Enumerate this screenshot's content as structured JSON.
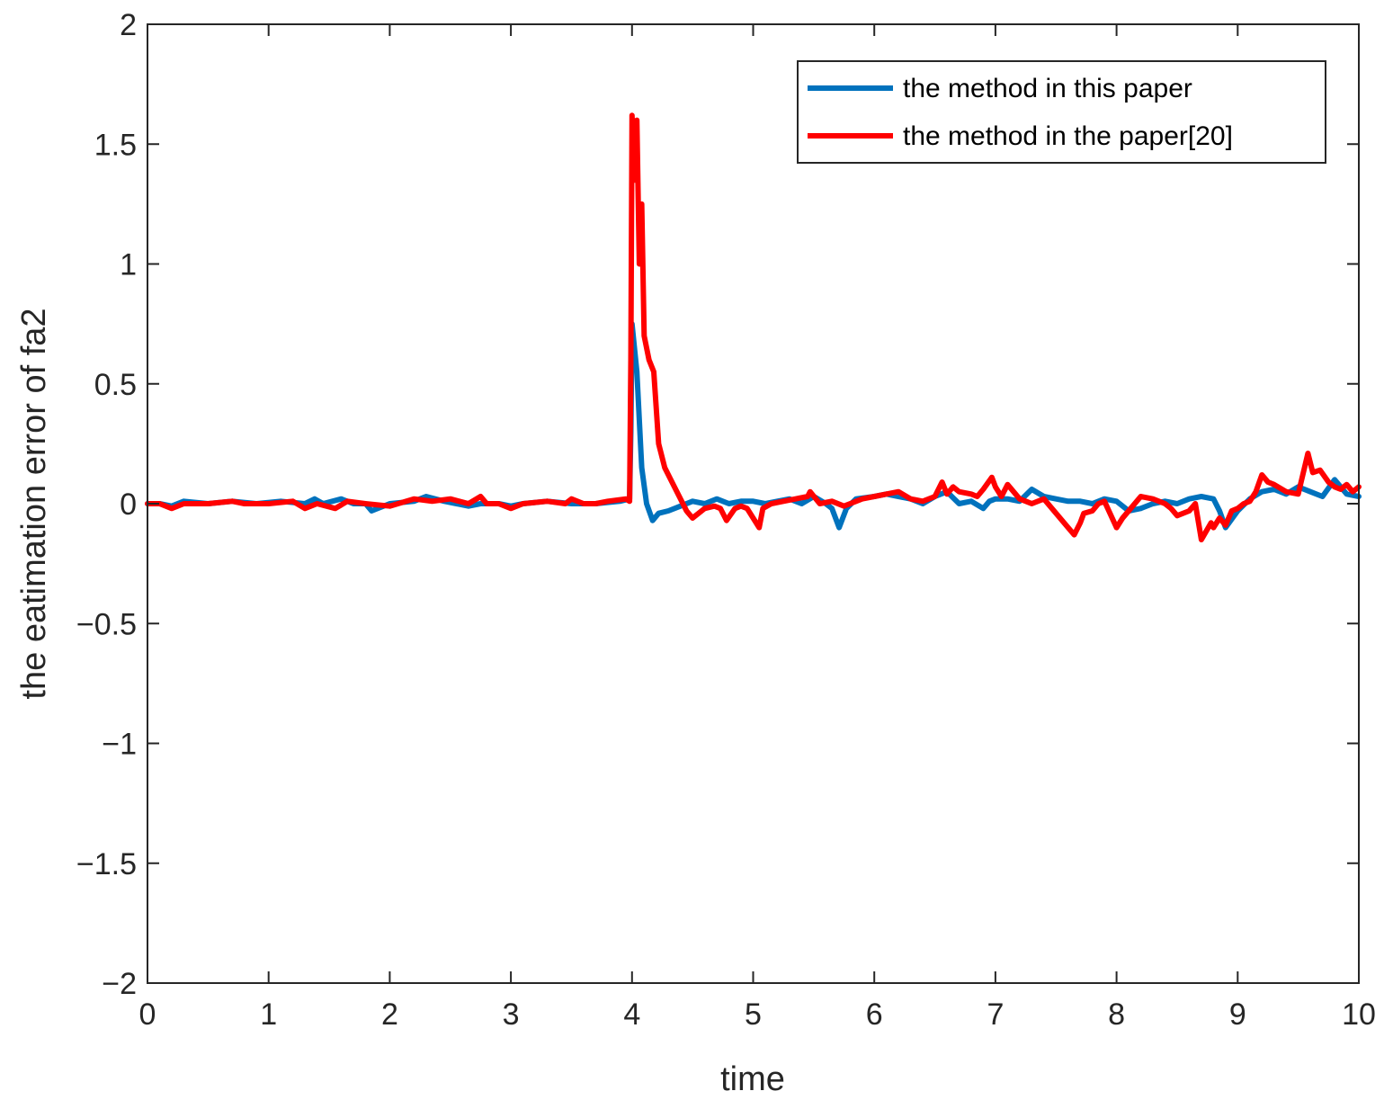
{
  "chart_data": {
    "type": "line",
    "title": "",
    "xlabel": "time",
    "ylabel": "the eatimation error of fa2",
    "xlim": [
      0,
      10
    ],
    "ylim": [
      -2,
      2
    ],
    "xticks": [
      0,
      1,
      2,
      3,
      4,
      5,
      6,
      7,
      8,
      9,
      10
    ],
    "xtick_labels": [
      "0",
      "1",
      "2",
      "3",
      "4",
      "5",
      "6",
      "7",
      "8",
      "9",
      "10"
    ],
    "yticks": [
      2,
      1.5,
      1,
      0.5,
      0,
      -0.5,
      -1,
      -1.5,
      -2
    ],
    "ytick_labels": [
      "2",
      "1.5",
      "1",
      "0.5",
      "0",
      "−0.5",
      "−1",
      "−1.5",
      "−2"
    ],
    "grid": false,
    "legend_position": "top-right",
    "series": [
      {
        "name": "the method in this paper",
        "color": "#0072bd",
        "x": [
          0,
          0.1,
          0.2,
          0.3,
          0.5,
          0.7,
          0.9,
          1.1,
          1.3,
          1.38,
          1.45,
          1.6,
          1.7,
          1.8,
          1.85,
          2.0,
          2.2,
          2.3,
          2.45,
          2.65,
          2.75,
          2.9,
          3.0,
          3.1,
          3.3,
          3.5,
          3.7,
          3.9,
          3.98,
          3.99,
          4.0,
          4.04,
          4.08,
          4.12,
          4.17,
          4.22,
          4.3,
          4.4,
          4.5,
          4.6,
          4.7,
          4.8,
          4.9,
          5.0,
          5.1,
          5.2,
          5.3,
          5.4,
          5.5,
          5.6,
          5.65,
          5.71,
          5.77,
          5.85,
          6.0,
          6.1,
          6.2,
          6.3,
          6.4,
          6.5,
          6.6,
          6.7,
          6.8,
          6.9,
          6.95,
          7.0,
          7.1,
          7.2,
          7.3,
          7.4,
          7.5,
          7.6,
          7.7,
          7.8,
          7.9,
          8.0,
          8.1,
          8.2,
          8.3,
          8.4,
          8.5,
          8.6,
          8.7,
          8.8,
          8.85,
          8.9,
          9.0,
          9.1,
          9.2,
          9.3,
          9.4,
          9.5,
          9.6,
          9.7,
          9.8,
          9.9,
          10.0
        ],
        "y": [
          0.0,
          0.0,
          -0.01,
          0.01,
          0.0,
          0.01,
          0.0,
          0.01,
          0.0,
          0.02,
          0.0,
          0.02,
          0.0,
          0.0,
          -0.03,
          0.0,
          0.01,
          0.03,
          0.01,
          -0.01,
          0.0,
          0.0,
          -0.01,
          0.0,
          0.01,
          0.0,
          0.0,
          0.01,
          0.02,
          0.3,
          0.75,
          0.55,
          0.15,
          0.0,
          -0.07,
          -0.04,
          -0.03,
          -0.01,
          0.01,
          0.0,
          0.02,
          0.0,
          0.01,
          0.01,
          0.0,
          0.01,
          0.02,
          0.0,
          0.03,
          0.0,
          -0.02,
          -0.1,
          -0.02,
          0.02,
          0.03,
          0.04,
          0.03,
          0.02,
          0.0,
          0.03,
          0.05,
          0.0,
          0.01,
          -0.02,
          0.01,
          0.02,
          0.02,
          0.01,
          0.06,
          0.03,
          0.02,
          0.01,
          0.01,
          0.0,
          0.02,
          0.01,
          -0.03,
          -0.02,
          0.0,
          0.01,
          0.0,
          0.02,
          0.03,
          0.02,
          -0.03,
          -0.1,
          -0.03,
          0.02,
          0.05,
          0.06,
          0.04,
          0.07,
          0.05,
          0.03,
          0.1,
          0.04,
          0.03
        ]
      },
      {
        "name": "the method in the paper[20]",
        "color": "#ff0000",
        "x": [
          0,
          0.1,
          0.2,
          0.3,
          0.5,
          0.7,
          0.8,
          1.0,
          1.2,
          1.3,
          1.4,
          1.55,
          1.65,
          1.8,
          2.0,
          2.2,
          2.35,
          2.5,
          2.65,
          2.75,
          2.8,
          2.9,
          3.0,
          3.1,
          3.3,
          3.45,
          3.5,
          3.6,
          3.7,
          3.8,
          3.95,
          3.98,
          3.99,
          4.0,
          4.02,
          4.04,
          4.06,
          4.08,
          4.1,
          4.14,
          4.18,
          4.22,
          4.27,
          4.32,
          4.4,
          4.45,
          4.5,
          4.6,
          4.68,
          4.73,
          4.78,
          4.85,
          4.9,
          4.95,
          5.05,
          5.08,
          5.15,
          5.25,
          5.35,
          5.45,
          5.47,
          5.55,
          5.65,
          5.75,
          5.8,
          5.9,
          6.0,
          6.1,
          6.2,
          6.3,
          6.4,
          6.5,
          6.56,
          6.6,
          6.65,
          6.7,
          6.8,
          6.85,
          6.9,
          6.97,
          7.0,
          7.05,
          7.1,
          7.15,
          7.2,
          7.25,
          7.3,
          7.4,
          7.5,
          7.6,
          7.65,
          7.7,
          7.73,
          7.8,
          7.85,
          7.9,
          8.0,
          8.05,
          8.1,
          8.2,
          8.3,
          8.4,
          8.45,
          8.5,
          8.6,
          8.65,
          8.7,
          8.78,
          8.8,
          8.85,
          8.9,
          8.95,
          9.0,
          9.05,
          9.1,
          9.15,
          9.2,
          9.25,
          9.3,
          9.4,
          9.5,
          9.58,
          9.62,
          9.68,
          9.75,
          9.8,
          9.85,
          9.9,
          9.95,
          10.0
        ],
        "y": [
          0.0,
          0.0,
          -0.02,
          0.0,
          0.0,
          0.01,
          0.0,
          0.0,
          0.01,
          -0.02,
          0.0,
          -0.02,
          0.01,
          0.0,
          -0.01,
          0.02,
          0.01,
          0.02,
          0.0,
          0.03,
          0.0,
          0.0,
          -0.02,
          0.0,
          0.01,
          0.0,
          0.02,
          0.0,
          0.0,
          0.01,
          0.02,
          0.01,
          0.6,
          1.62,
          1.35,
          1.6,
          1.0,
          1.25,
          0.7,
          0.6,
          0.55,
          0.25,
          0.15,
          0.1,
          0.02,
          -0.03,
          -0.06,
          -0.02,
          -0.01,
          -0.02,
          -0.07,
          -0.02,
          -0.01,
          -0.02,
          -0.1,
          -0.02,
          0.0,
          0.01,
          0.02,
          0.03,
          0.05,
          0.0,
          0.01,
          -0.01,
          0.0,
          0.02,
          0.03,
          0.04,
          0.05,
          0.02,
          0.01,
          0.03,
          0.09,
          0.04,
          0.07,
          0.05,
          0.04,
          0.03,
          0.06,
          0.11,
          0.07,
          0.03,
          0.08,
          0.05,
          0.02,
          0.01,
          0.0,
          0.02,
          -0.04,
          -0.1,
          -0.13,
          -0.08,
          -0.04,
          -0.03,
          0.0,
          0.01,
          -0.1,
          -0.06,
          -0.03,
          0.03,
          0.02,
          0.0,
          -0.02,
          -0.05,
          -0.03,
          0.0,
          -0.15,
          -0.08,
          -0.1,
          -0.06,
          -0.09,
          -0.03,
          -0.02,
          0.0,
          0.01,
          0.05,
          0.12,
          0.09,
          0.08,
          0.05,
          0.04,
          0.21,
          0.13,
          0.14,
          0.09,
          0.07,
          0.06,
          0.08,
          0.05,
          0.07
        ]
      }
    ]
  }
}
